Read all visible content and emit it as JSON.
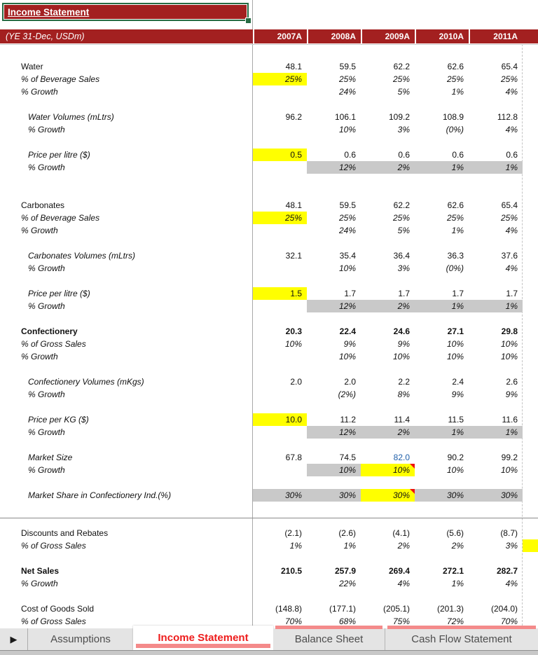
{
  "colors": {
    "header_red": "#a32020",
    "selection_green": "#266b43",
    "highlight_yellow": "#ffff00",
    "highlight_gray": "#c9c9c9",
    "hardcode_blue": "#1f5fa9",
    "comment_red": "#ee1111",
    "active_tab_red": "#ee1c1c",
    "tab_accent_salmon": "#f48a8a"
  },
  "sheet": {
    "title": "Income Statement",
    "header_label": "(YE 31-Dec, USDm)",
    "years": [
      "2007A",
      "2008A",
      "2009A",
      "2010A",
      "2011A"
    ],
    "rows": [
      {
        "row": 0,
        "label": "Water",
        "cells": [
          "48.1",
          "59.5",
          "62.2",
          "62.6",
          "65.4"
        ]
      },
      {
        "row": 1,
        "label": "% of Beverage Sales",
        "li": true,
        "it": true,
        "cells": [
          {
            "t": "25%",
            "f": "y"
          },
          "25%",
          "25%",
          "25%",
          "25%"
        ]
      },
      {
        "row": 2,
        "label": "% Growth",
        "li": true,
        "it": true,
        "cells": [
          "",
          "24%",
          "5%",
          "1%",
          "4%"
        ]
      },
      {
        "row": 4,
        "label": "Water Volumes (mLtrs)",
        "li": true,
        "ind": true,
        "cells": [
          "96.2",
          "106.1",
          "109.2",
          "108.9",
          "112.8"
        ]
      },
      {
        "row": 5,
        "label": "% Growth",
        "li": true,
        "ind": true,
        "it": true,
        "cells": [
          "",
          "10%",
          "3%",
          "(0%)",
          "4%"
        ]
      },
      {
        "row": 7,
        "label": "Price per litre ($)",
        "li": true,
        "ind": true,
        "cells": [
          {
            "t": "0.5",
            "f": "y"
          },
          "0.6",
          "0.6",
          "0.6",
          "0.6"
        ]
      },
      {
        "row": 8,
        "label": "% Growth",
        "li": true,
        "ind": true,
        "it": true,
        "cells": [
          "",
          {
            "t": "12%",
            "f": "g"
          },
          {
            "t": "2%",
            "f": "g"
          },
          {
            "t": "1%",
            "f": "g"
          },
          {
            "t": "1%",
            "f": "g"
          }
        ]
      },
      {
        "row": 11,
        "label": "Carbonates",
        "cells": [
          "48.1",
          "59.5",
          "62.2",
          "62.6",
          "65.4"
        ]
      },
      {
        "row": 12,
        "label": "% of Beverage Sales",
        "li": true,
        "it": true,
        "cells": [
          {
            "t": "25%",
            "f": "y"
          },
          "25%",
          "25%",
          "25%",
          "25%"
        ]
      },
      {
        "row": 13,
        "label": "% Growth",
        "li": true,
        "it": true,
        "cells": [
          "",
          "24%",
          "5%",
          "1%",
          "4%"
        ]
      },
      {
        "row": 15,
        "label": "Carbonates Volumes (mLtrs)",
        "li": true,
        "ind": true,
        "cells": [
          "32.1",
          "35.4",
          "36.4",
          "36.3",
          "37.6"
        ]
      },
      {
        "row": 16,
        "label": "% Growth",
        "li": true,
        "ind": true,
        "it": true,
        "cells": [
          "",
          "10%",
          "3%",
          "(0%)",
          "4%"
        ]
      },
      {
        "row": 18,
        "label": "Price per litre ($)",
        "li": true,
        "ind": true,
        "cells": [
          {
            "t": "1.5",
            "f": "y"
          },
          "1.7",
          "1.7",
          "1.7",
          "1.7"
        ]
      },
      {
        "row": 19,
        "label": "% Growth",
        "li": true,
        "ind": true,
        "it": true,
        "cells": [
          "",
          {
            "t": "12%",
            "f": "g"
          },
          {
            "t": "2%",
            "f": "g"
          },
          {
            "t": "1%",
            "f": "g"
          },
          {
            "t": "1%",
            "f": "g"
          }
        ]
      },
      {
        "row": 21,
        "label": "Confectionery",
        "lb": true,
        "vb": true,
        "cells": [
          "20.3",
          "22.4",
          "24.6",
          "27.1",
          "29.8"
        ]
      },
      {
        "row": 22,
        "label": "% of Gross Sales",
        "li": true,
        "it": true,
        "cells": [
          "10%",
          "9%",
          "9%",
          "10%",
          "10%"
        ]
      },
      {
        "row": 23,
        "label": "% Growth",
        "li": true,
        "it": true,
        "cells": [
          "",
          "10%",
          "10%",
          "10%",
          "10%"
        ]
      },
      {
        "row": 25,
        "label": "Confectionery Volumes (mKgs)",
        "li": true,
        "ind": true,
        "cells": [
          "2.0",
          "2.0",
          "2.2",
          "2.4",
          "2.6"
        ]
      },
      {
        "row": 26,
        "label": "% Growth",
        "li": true,
        "ind": true,
        "it": true,
        "cells": [
          "",
          "(2%)",
          "8%",
          "9%",
          "9%"
        ]
      },
      {
        "row": 28,
        "label": "Price per KG ($)",
        "li": true,
        "ind": true,
        "cells": [
          {
            "t": "10.0",
            "f": "y"
          },
          "11.2",
          "11.4",
          "11.5",
          "11.6"
        ]
      },
      {
        "row": 29,
        "label": "% Growth",
        "li": true,
        "ind": true,
        "it": true,
        "cells": [
          "",
          {
            "t": "12%",
            "f": "g"
          },
          {
            "t": "2%",
            "f": "g"
          },
          {
            "t": "1%",
            "f": "g"
          },
          {
            "t": "1%",
            "f": "g"
          }
        ]
      },
      {
        "row": 31,
        "label": "Market Size",
        "li": true,
        "ind": true,
        "cells": [
          "67.8",
          "74.5",
          {
            "t": "82.0",
            "c": "blue"
          },
          "90.2",
          "99.2"
        ]
      },
      {
        "row": 32,
        "label": "% Growth",
        "li": true,
        "ind": true,
        "it": true,
        "cells": [
          "",
          {
            "t": "10%",
            "f": "g"
          },
          {
            "t": "10%",
            "f": "y",
            "n": true
          },
          "10%",
          "10%"
        ]
      },
      {
        "row": 34,
        "label": "Market Share in Confectionery Ind.(%)",
        "li": true,
        "ind": true,
        "it": true,
        "cells": [
          {
            "t": "30%",
            "f": "g"
          },
          {
            "t": "30%",
            "f": "g"
          },
          {
            "t": "30%",
            "f": "y",
            "n": true
          },
          {
            "t": "30%",
            "f": "g"
          },
          {
            "t": "30%",
            "f": "g"
          }
        ]
      },
      {
        "row": 37,
        "label": "Discounts and Rebates",
        "cells": [
          "(2.1)",
          "(2.6)",
          "(4.1)",
          "(5.6)",
          "(8.7)"
        ]
      },
      {
        "row": 38,
        "label": "% of Gross Sales",
        "li": true,
        "it": true,
        "right_fill": "y",
        "cells": [
          "1%",
          "1%",
          "2%",
          "2%",
          "3%"
        ]
      },
      {
        "row": 40,
        "label": "Net Sales",
        "lb": true,
        "vb": true,
        "cells": [
          "210.5",
          "257.9",
          "269.4",
          "272.1",
          "282.7"
        ]
      },
      {
        "row": 41,
        "label": "% Growth",
        "li": true,
        "it": true,
        "cells": [
          "",
          "22%",
          "4%",
          "1%",
          "4%"
        ]
      },
      {
        "row": 43,
        "label": "Cost of Goods Sold",
        "cells": [
          "(148.8)",
          "(177.1)",
          "(205.1)",
          "(201.3)",
          "(204.0)"
        ]
      },
      {
        "row": 44,
        "label": "% of Gross Sales",
        "li": true,
        "it": true,
        "cells": [
          "70%",
          "68%",
          "75%",
          "72%",
          "70%"
        ]
      }
    ]
  },
  "tabs": [
    {
      "label": "Assumptions",
      "active": false
    },
    {
      "label": "Income Statement",
      "active": true
    },
    {
      "label": "Balance Sheet",
      "active": false
    },
    {
      "label": "Cash Flow Statement",
      "active": false
    }
  ],
  "nav": {
    "next_sheet_glyph": "▶"
  }
}
